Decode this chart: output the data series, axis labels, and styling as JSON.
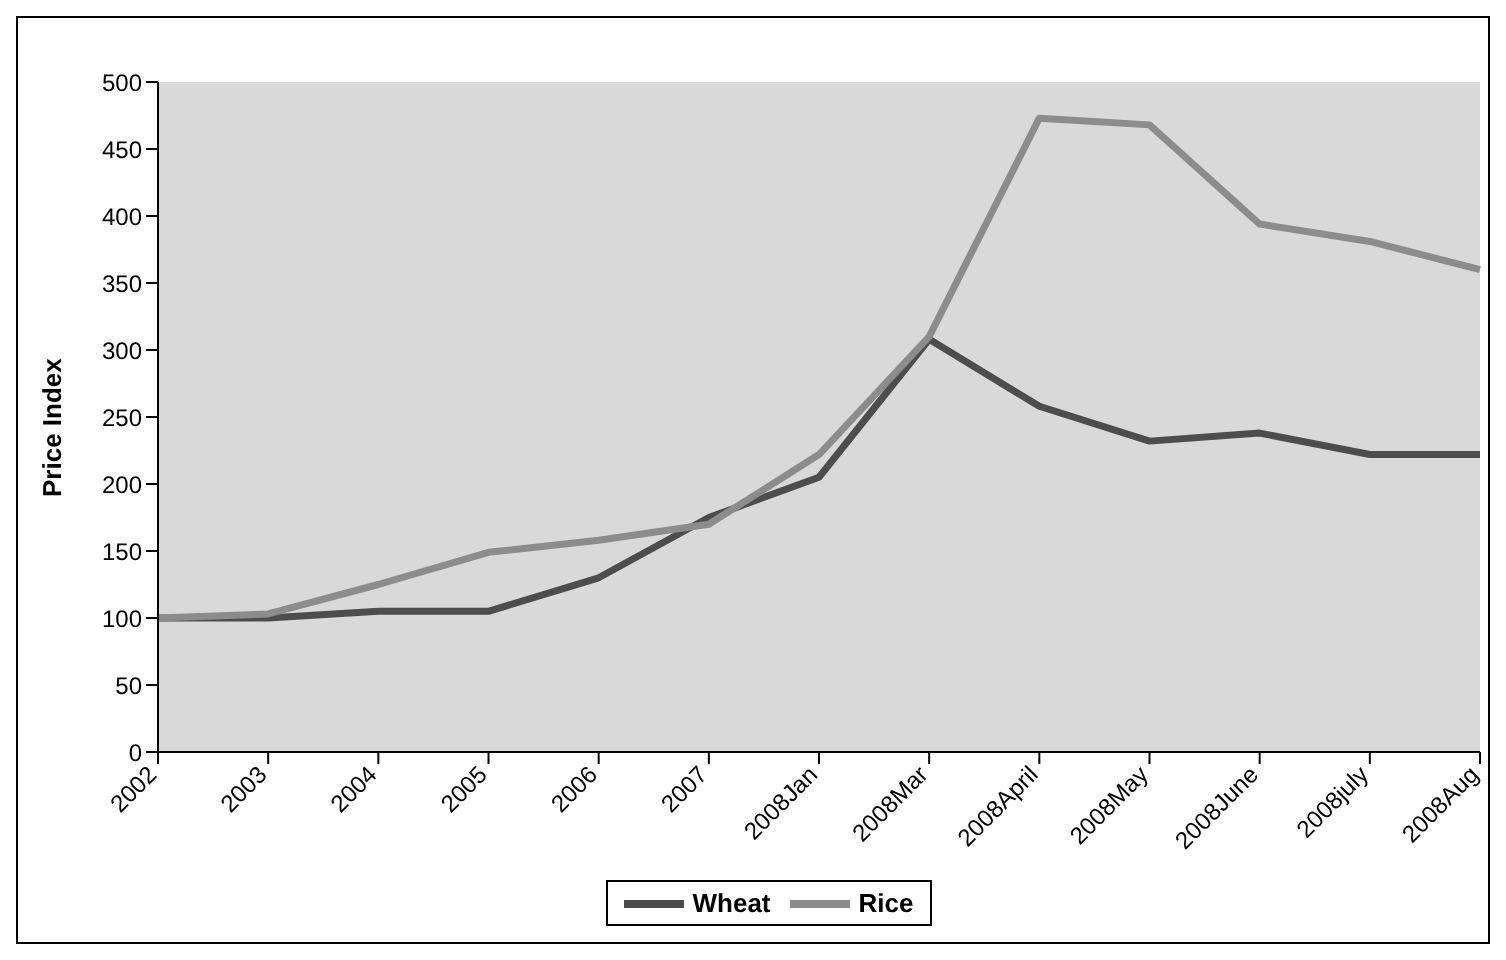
{
  "chart_data": {
    "type": "line",
    "ylabel": "Price Index",
    "categories": [
      "2002",
      "2003",
      "2004",
      "2005",
      "2006",
      "2007",
      "2008Jan",
      "2008Mar",
      "2008April",
      "2008May",
      "2008June",
      "2008july",
      "2008Aug"
    ],
    "series": [
      {
        "name": "Wheat",
        "color": "#4d4d4d",
        "values": [
          100,
          100,
          105,
          105,
          130,
          175,
          205,
          308,
          258,
          232,
          238,
          222,
          222
        ]
      },
      {
        "name": "Rice",
        "color": "#8c8c8c",
        "values": [
          100,
          103,
          125,
          149,
          158,
          170,
          222,
          310,
          473,
          468,
          394,
          381,
          360
        ]
      }
    ],
    "ylim": [
      0,
      500
    ],
    "yticks": [
      0,
      50,
      100,
      150,
      200,
      250,
      300,
      350,
      400,
      450,
      500
    ],
    "grid": false,
    "legend": "bottom",
    "marker": "none",
    "line_style": "solid"
  }
}
